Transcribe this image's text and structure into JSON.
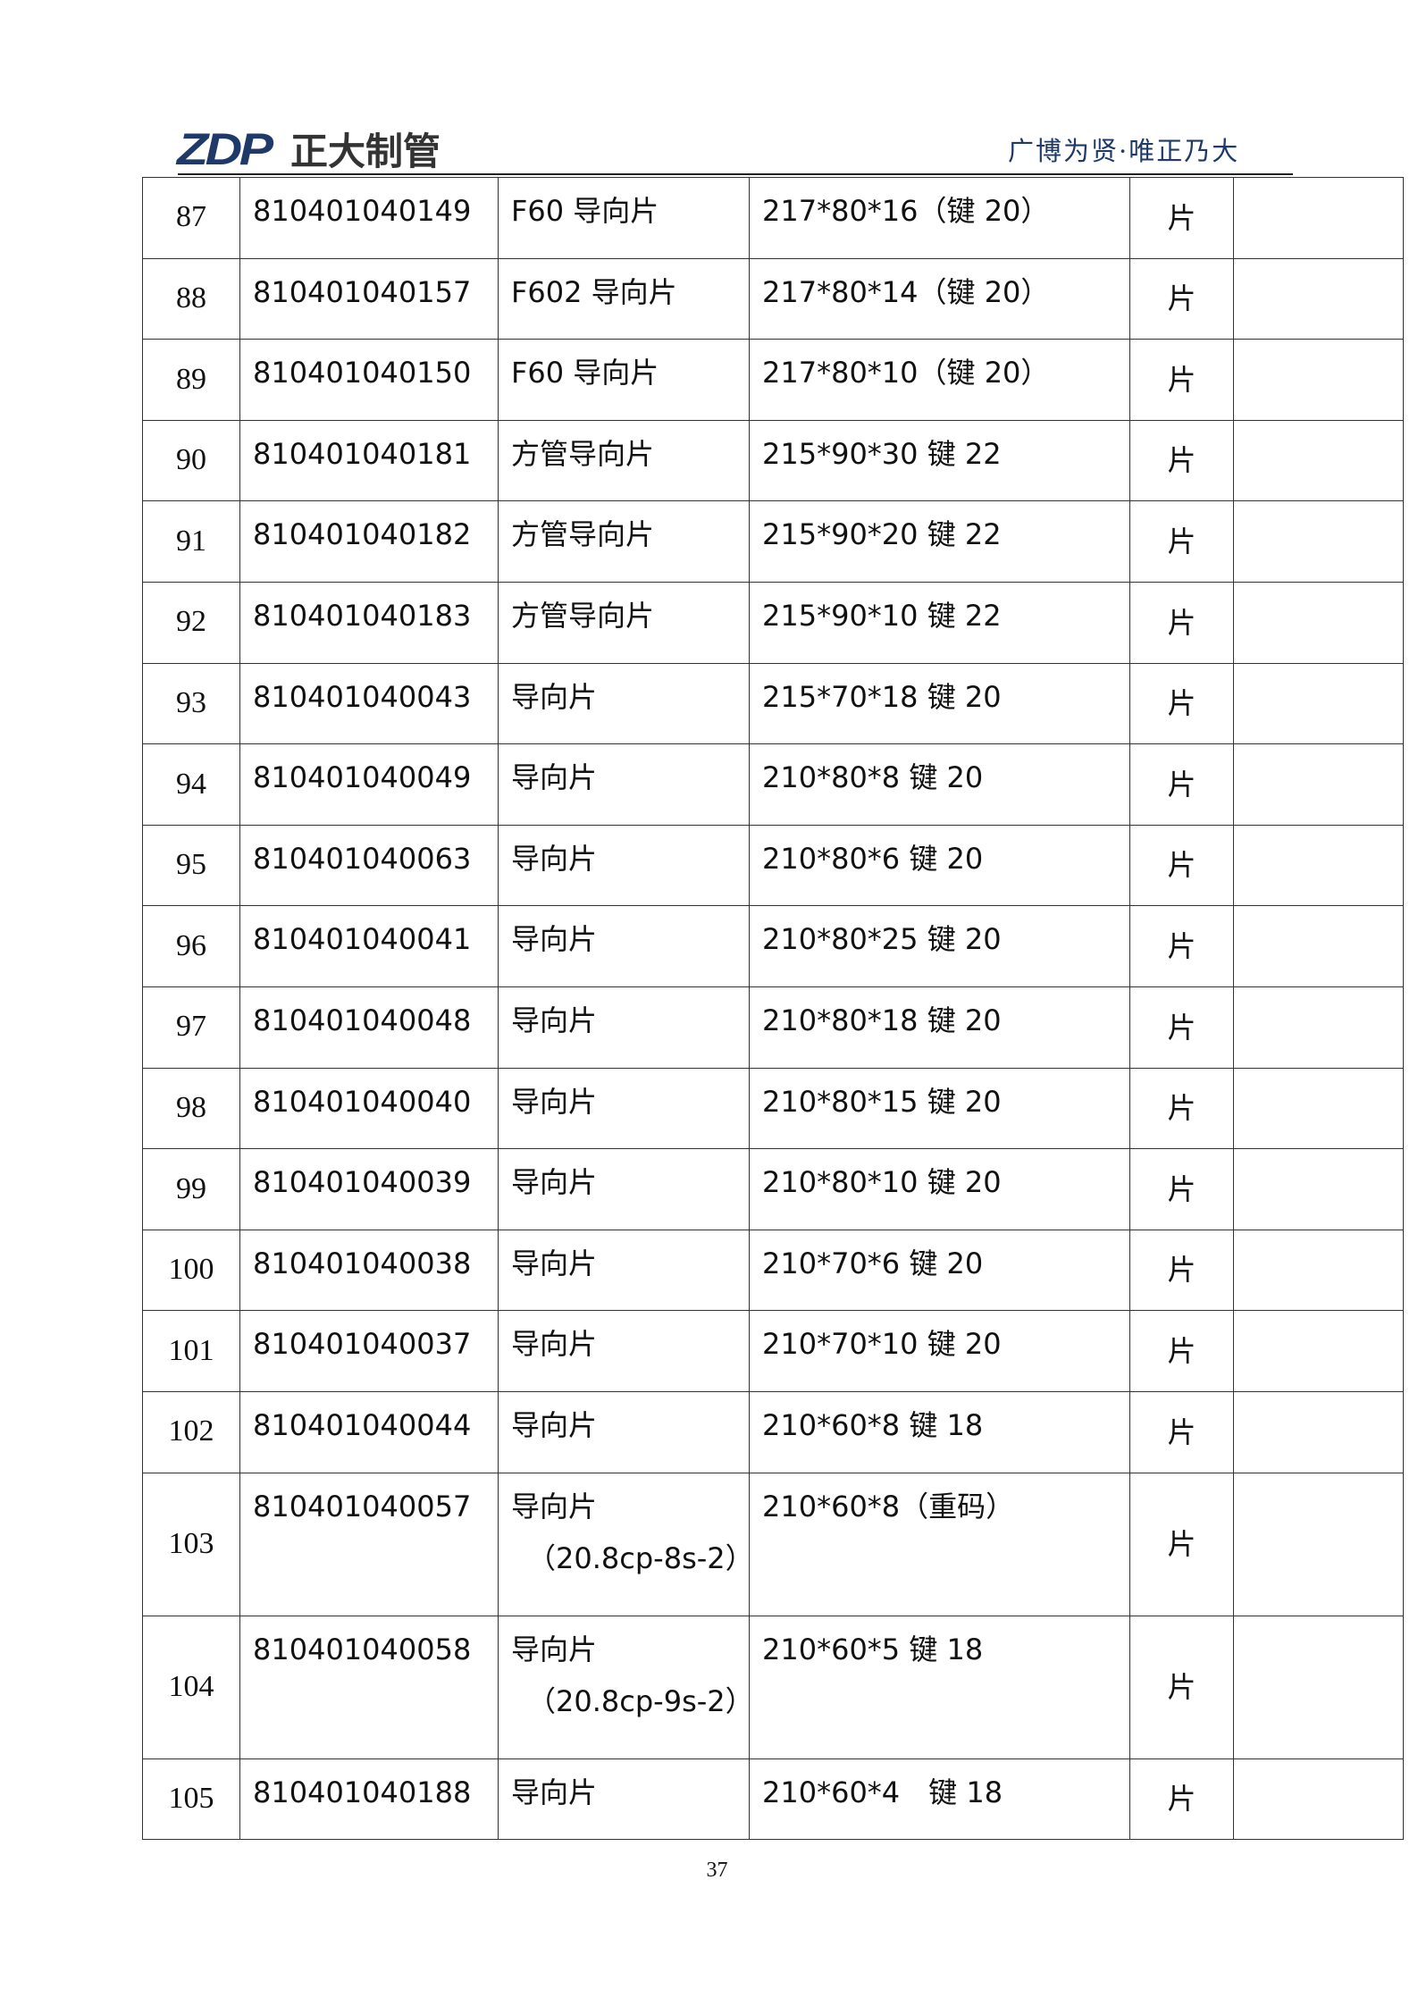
{
  "header": {
    "logo_mark": "ZDP",
    "company_name": "正大制管",
    "slogan": "广博为贤·唯正乃大",
    "brand_color": "#1f3a68"
  },
  "rows": [
    {
      "no": "87",
      "code": "810401040149",
      "name": "F60 导向片",
      "spec": "217*80*16（键 20）",
      "unit": "片",
      "note": ""
    },
    {
      "no": "88",
      "code": "810401040157",
      "name": "F602 导向片",
      "spec": "217*80*14（键 20）",
      "unit": "片",
      "note": ""
    },
    {
      "no": "89",
      "code": "810401040150",
      "name": "F60 导向片",
      "spec": "217*80*10（键 20）",
      "unit": "片",
      "note": ""
    },
    {
      "no": "90",
      "code": "810401040181",
      "name": "方管导向片",
      "spec": "215*90*30 键 22",
      "unit": "片",
      "note": ""
    },
    {
      "no": "91",
      "code": "810401040182",
      "name": "方管导向片",
      "spec": "215*90*20 键 22",
      "unit": "片",
      "note": ""
    },
    {
      "no": "92",
      "code": "810401040183",
      "name": "方管导向片",
      "spec": "215*90*10 键 22",
      "unit": "片",
      "note": ""
    },
    {
      "no": "93",
      "code": "810401040043",
      "name": "导向片",
      "spec": "215*70*18 键 20",
      "unit": "片",
      "note": ""
    },
    {
      "no": "94",
      "code": "810401040049",
      "name": "导向片",
      "spec": "210*80*8 键 20",
      "unit": "片",
      "note": ""
    },
    {
      "no": "95",
      "code": "810401040063",
      "name": "导向片",
      "spec": "210*80*6 键 20",
      "unit": "片",
      "note": ""
    },
    {
      "no": "96",
      "code": "810401040041",
      "name": "导向片",
      "spec": "210*80*25 键 20",
      "unit": "片",
      "note": ""
    },
    {
      "no": "97",
      "code": "810401040048",
      "name": "导向片",
      "spec": "210*80*18 键 20",
      "unit": "片",
      "note": ""
    },
    {
      "no": "98",
      "code": "810401040040",
      "name": "导向片",
      "spec": "210*80*15 键 20",
      "unit": "片",
      "note": ""
    },
    {
      "no": "99",
      "code": "810401040039",
      "name": "导向片",
      "spec": "210*80*10 键 20",
      "unit": "片",
      "note": ""
    },
    {
      "no": "100",
      "code": "810401040038",
      "name": "导向片",
      "spec": "210*70*6 键 20",
      "unit": "片",
      "note": ""
    },
    {
      "no": "101",
      "code": "810401040037",
      "name": "导向片",
      "spec": "210*70*10 键 20",
      "unit": "片",
      "note": ""
    },
    {
      "no": "102",
      "code": "810401040044",
      "name": "导向片",
      "spec": "210*60*8 键 18",
      "unit": "片",
      "note": ""
    },
    {
      "no": "103",
      "code": "810401040057",
      "name": "导向片",
      "name_sub": "（20.8cp-8s-2）",
      "spec": "210*60*8（重码）",
      "unit": "片",
      "note": ""
    },
    {
      "no": "104",
      "code": "810401040058",
      "name": "导向片",
      "name_sub": "（20.8cp-9s-2）",
      "spec": "210*60*5 键 18",
      "unit": "片",
      "note": ""
    },
    {
      "no": "105",
      "code": "810401040188",
      "name": "导向片",
      "spec": "210*60*4　键 18",
      "unit": "片",
      "note": ""
    }
  ],
  "footer": {
    "page_number": "37"
  }
}
